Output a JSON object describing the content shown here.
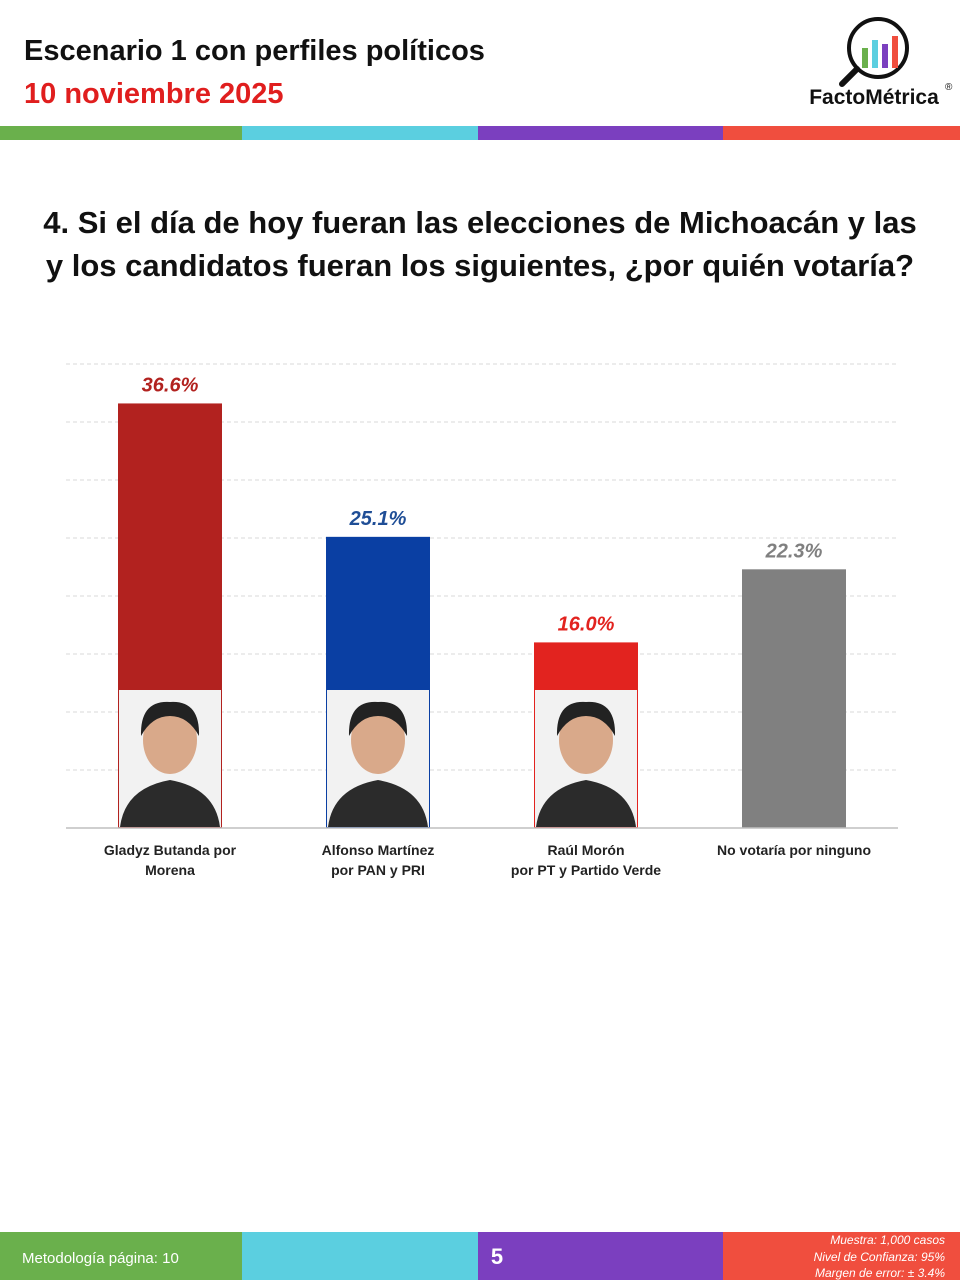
{
  "header": {
    "title": "Escenario 1 con perfiles políticos",
    "subtitle": "10 noviembre 2025",
    "logo": "FactoMétrica",
    "logo_mark": "®"
  },
  "question": [
    "4. Si el día de hoy fueran las elecciones de Michoacán y las",
    "y los candidatos fueran los siguientes, ¿por quién votaría?"
  ],
  "chart_data": {
    "type": "bar",
    "categories": [
      [
        "Gladyz Butanda por",
        "Morena"
      ],
      [
        "Alfonso Martínez",
        "por PAN y PRI"
      ],
      [
        "Raúl Morón",
        "por PT y Partido Verde"
      ],
      [
        "No votaría por ninguno"
      ]
    ],
    "values": [
      36.6,
      25.1,
      16.0,
      22.3
    ],
    "value_labels": [
      "36.6%",
      "25.1%",
      "16.0%",
      "22.3%"
    ],
    "colors": [
      "#b2221f",
      "#0a3fa3",
      "#e2231f",
      "#808080"
    ],
    "label_colors": [
      "#b2221f",
      "#1f4e96",
      "#e2231f",
      "#808080"
    ],
    "ylim": [
      0,
      40
    ],
    "yticks": [
      0,
      5,
      10,
      15,
      20,
      25,
      30,
      35,
      40
    ],
    "grid": true
  },
  "footer": {
    "methodology": "Metodología página: 10",
    "page": "5",
    "notes": [
      "Muestra:  1,000 casos",
      "Nivel de Confianza: 95%",
      "Margen de error: ± 3.4%"
    ]
  }
}
